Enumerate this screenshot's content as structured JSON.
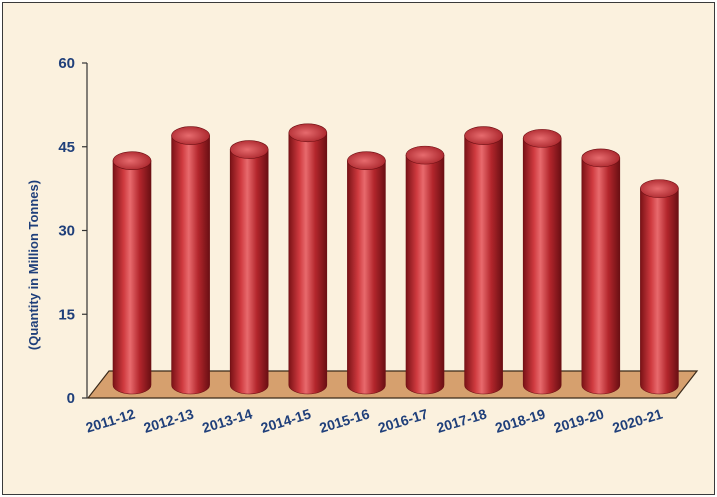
{
  "chart_data": {
    "type": "bar",
    "title": "",
    "xlabel": "",
    "ylabel": "(Quantity in Million Tonnes)",
    "ylim": [
      0,
      60
    ],
    "yticks": [
      0,
      15,
      30,
      45,
      60
    ],
    "categories": [
      "2011-12",
      "2012-13",
      "2013-14",
      "2014-15",
      "2015-16",
      "2016-17",
      "2017-18",
      "2018-19",
      "2019-20",
      "2020-21"
    ],
    "values": [
      42.5,
      47,
      44.5,
      47.5,
      42.5,
      43.5,
      47,
      46.5,
      43,
      37.5
    ],
    "grid": false,
    "legend": "none",
    "colors": {
      "bar": "#b3262c",
      "bar_dark": "#6e1014",
      "bar_light": "#e6666a",
      "floor": "#d6a06e",
      "background": "#fbf1de",
      "text": "#1f3f7a"
    }
  }
}
